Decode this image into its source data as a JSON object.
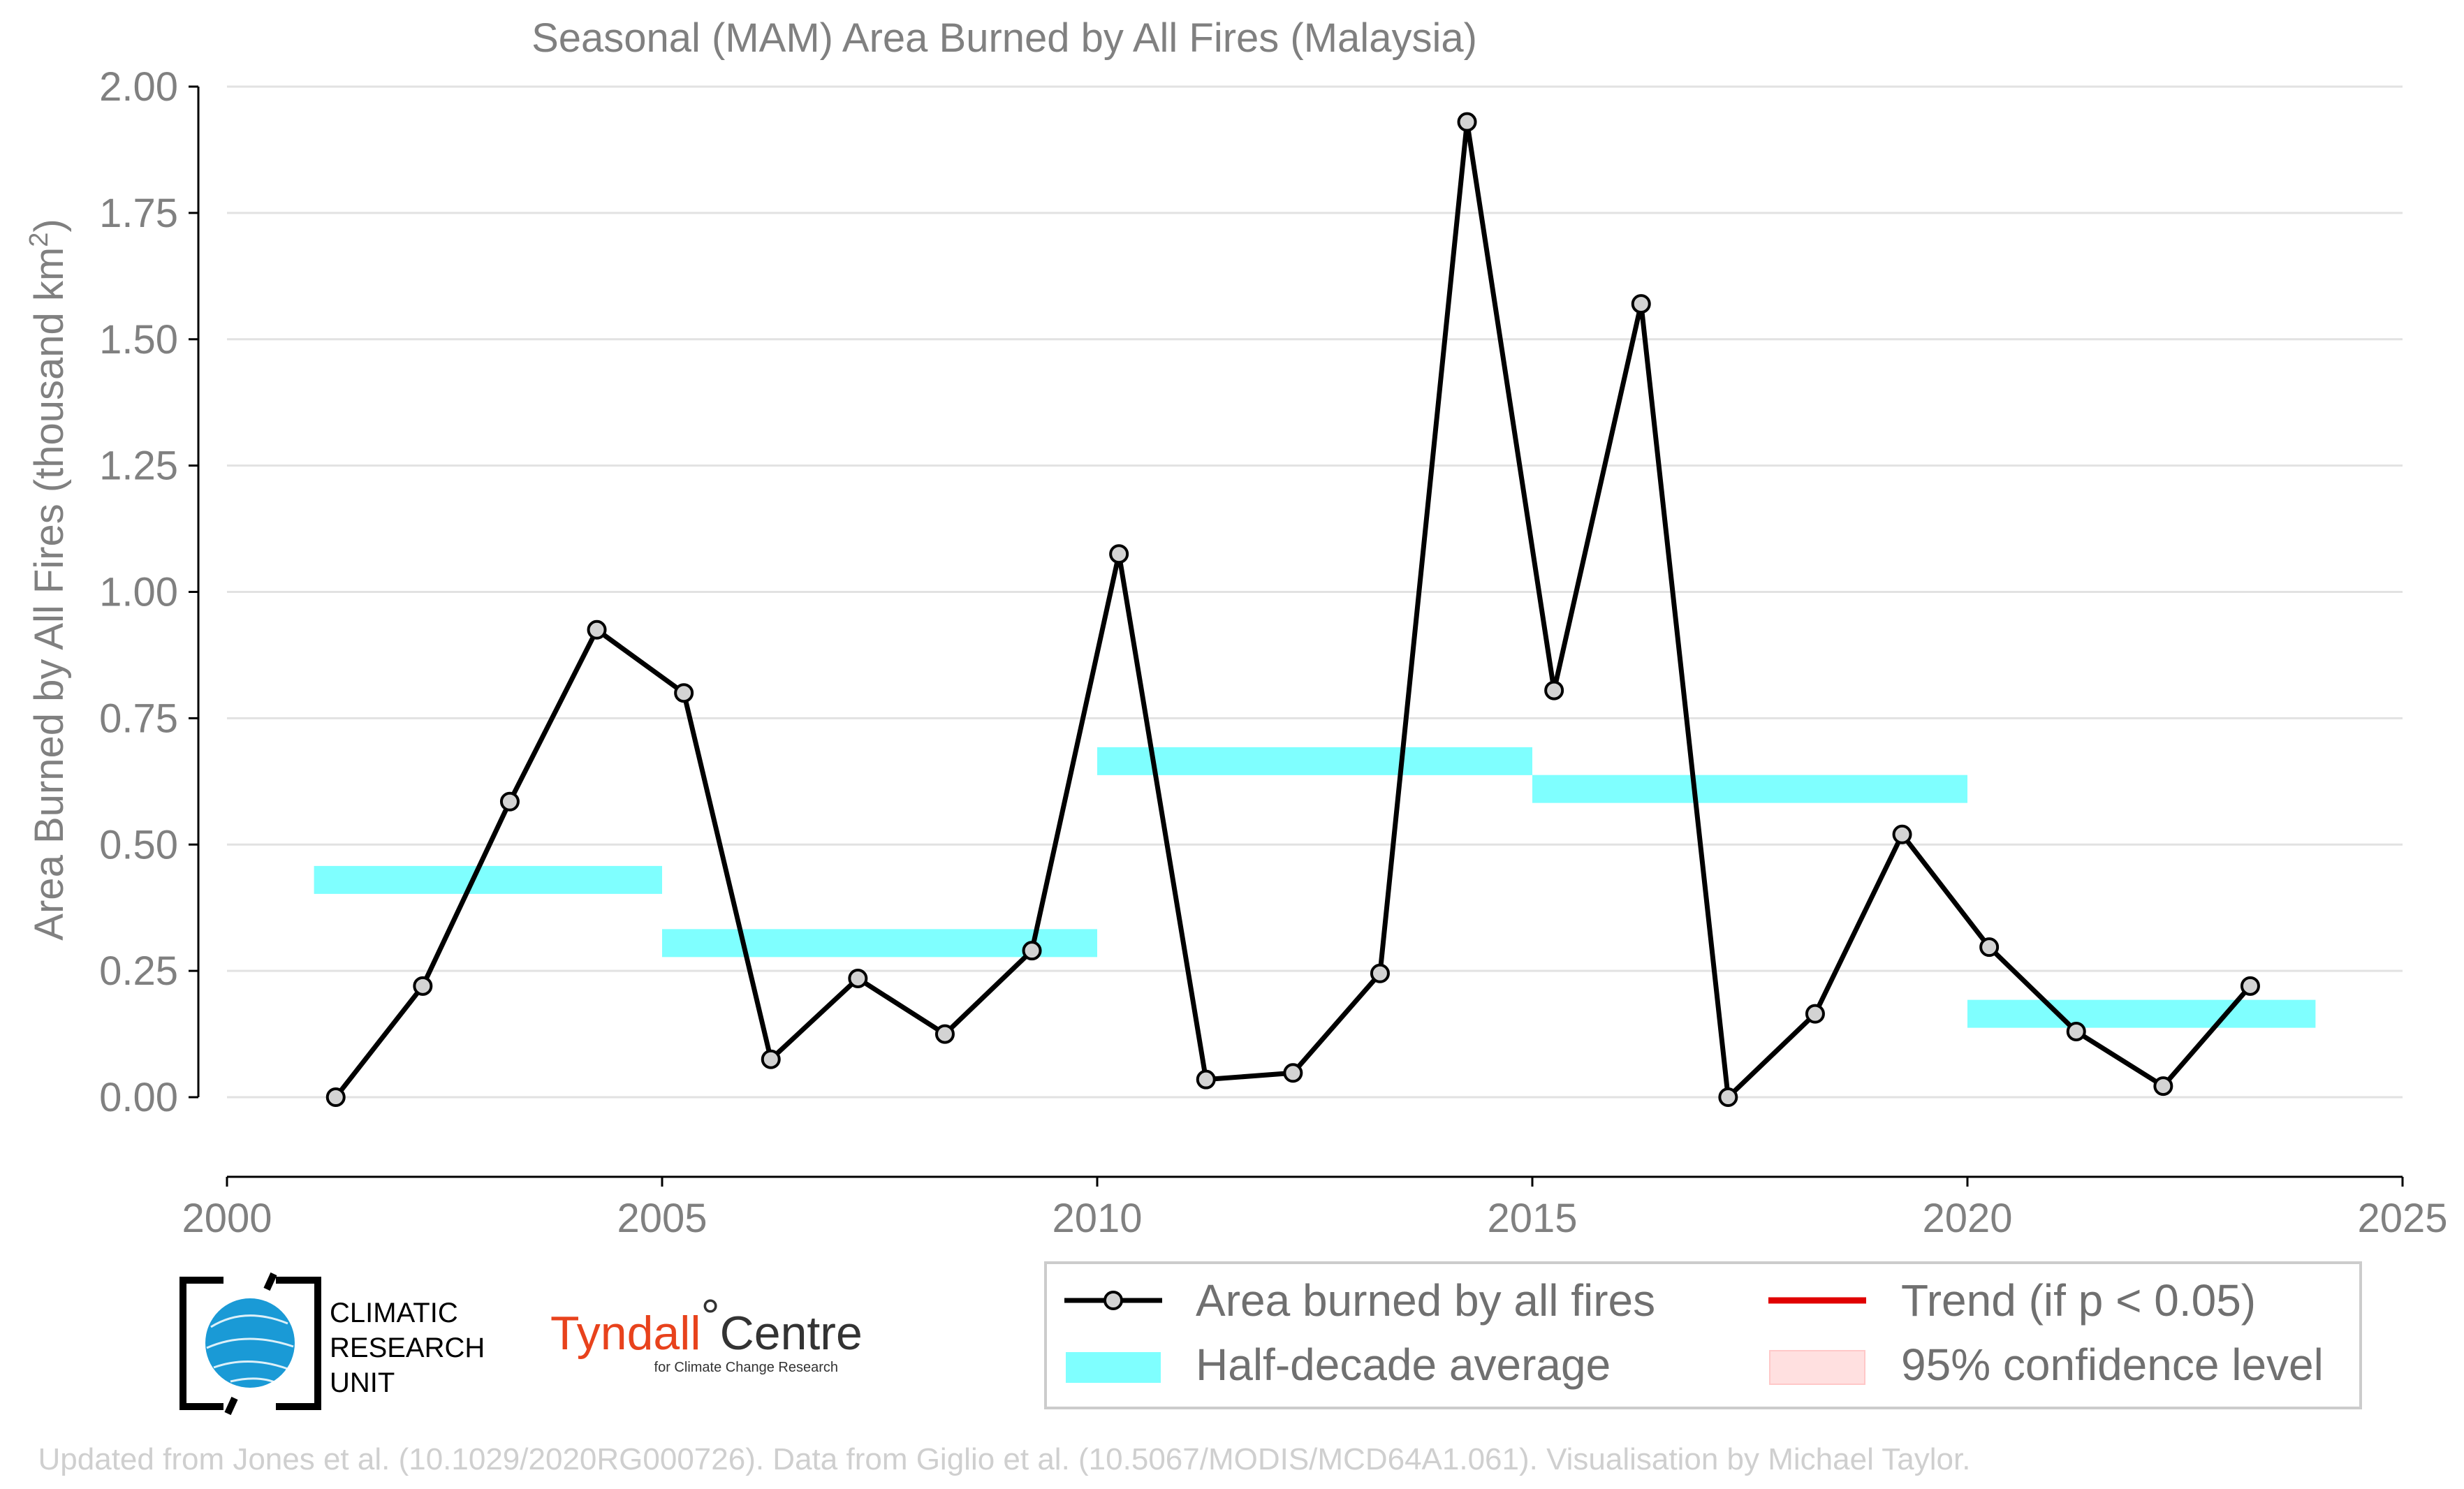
{
  "chart_data": {
    "type": "line",
    "title": "Seasonal (MAM) Area Burned by All Fires (Malaysia)",
    "ylabel": "Area Burned by All Fires (thousand km",
    "ylabel_sup": "2",
    "ylabel_end": ")",
    "xlim": [
      2000,
      2025
    ],
    "ylim": [
      -0.15,
      2.0
    ],
    "x_ticks": [
      2000,
      2005,
      2010,
      2015,
      2020,
      2025
    ],
    "x_tick_labels": [
      "2000",
      "2005",
      "2010",
      "2015",
      "2020",
      "2025"
    ],
    "y_ticks": [
      0,
      0.25,
      0.5,
      0.75,
      1.0,
      1.25,
      1.5,
      1.75,
      2.0
    ],
    "y_tick_labels": [
      "0.00",
      "0.25",
      "0.50",
      "0.75",
      "1.00",
      "1.25",
      "1.50",
      "1.75",
      "2.00"
    ],
    "grid": "horizontal",
    "series": [
      {
        "name": "Area burned by all fires",
        "color": "#000000",
        "marker_fill": "#d3d3d3",
        "x": [
          2001.25,
          2002.25,
          2003.25,
          2004.25,
          2005.25,
          2006.25,
          2007.25,
          2008.25,
          2009.25,
          2010.25,
          2011.25,
          2012.25,
          2013.25,
          2014.25,
          2015.25,
          2016.25,
          2017.25,
          2018.25,
          2019.25,
          2020.25,
          2021.25,
          2022.25,
          2023.25
        ],
        "values": [
          0.0,
          0.22,
          0.585,
          0.925,
          0.8,
          0.075,
          0.235,
          0.125,
          0.29,
          1.075,
          0.035,
          0.048,
          0.245,
          1.93,
          0.805,
          1.57,
          0.0,
          0.165,
          0.52,
          0.297,
          0.13,
          0.022,
          0.22
        ]
      }
    ],
    "half_decade_averages": {
      "name": "Half-decade average",
      "color": "#7fffff",
      "segments": [
        {
          "start": 2001,
          "end": 2005,
          "value": 0.43
        },
        {
          "start": 2005,
          "end": 2010,
          "value": 0.305
        },
        {
          "start": 2010,
          "end": 2015,
          "value": 0.665
        },
        {
          "start": 2015,
          "end": 2020,
          "value": 0.61
        },
        {
          "start": 2020,
          "end": 2024,
          "value": 0.165
        }
      ]
    },
    "legend": {
      "placement": "bottom-right",
      "entries": [
        {
          "label": "Area burned by all fires",
          "kind": "line-marker",
          "color": "#000000"
        },
        {
          "label": "Trend (if p < 0.05)",
          "kind": "line",
          "color": "#e00000"
        },
        {
          "label": "Half-decade average",
          "kind": "band",
          "color": "#7fffff"
        },
        {
          "label": "95% confidence level",
          "kind": "patch",
          "color": "#ffe0e0"
        }
      ]
    }
  },
  "logos": {
    "cru_lines": [
      "CLIMATIC",
      "RESEARCH",
      "UNIT"
    ],
    "tyndall_main": "Tyndall",
    "tyndall_degree": "°",
    "tyndall_centre": "Centre",
    "tyndall_sub": "for Climate Change Research"
  },
  "credit": "Updated from Jones et al. (10.1029/2020RG000726). Data from Giglio et al. (10.5067/MODIS/MCD64A1.061). Visualisation by Michael Taylor."
}
